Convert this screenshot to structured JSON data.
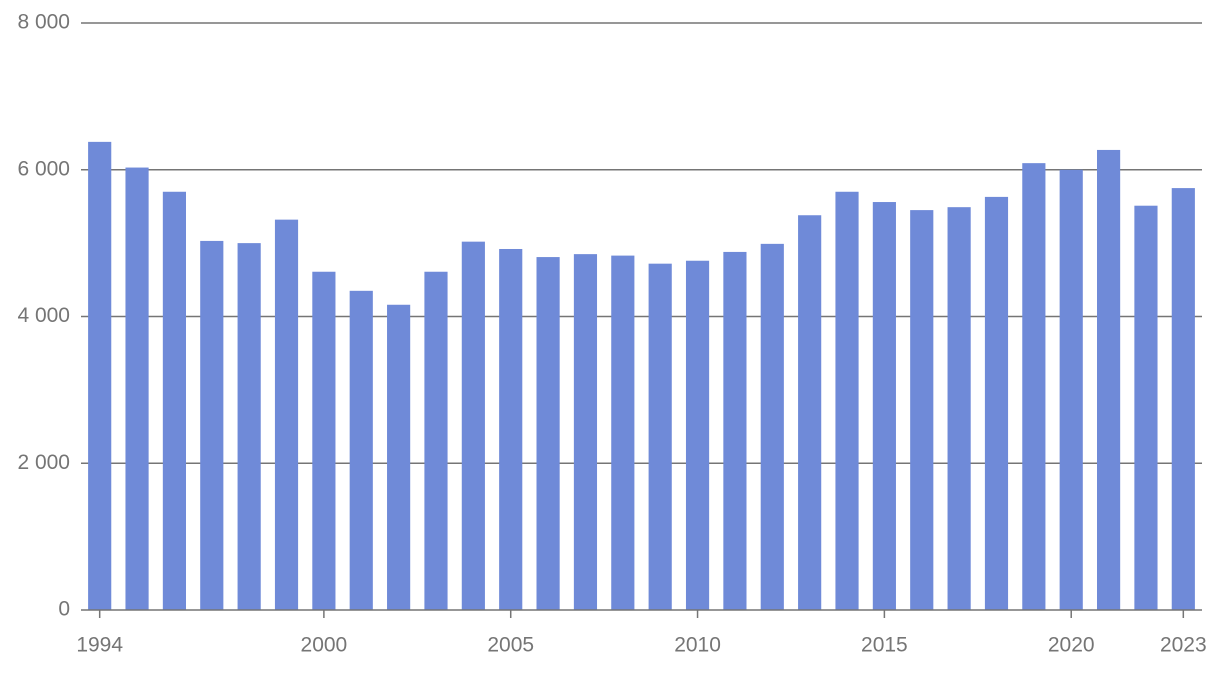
{
  "chart_data": {
    "type": "bar",
    "x": [
      1994,
      1995,
      1996,
      1997,
      1998,
      1999,
      2000,
      2001,
      2002,
      2003,
      2004,
      2005,
      2006,
      2007,
      2008,
      2009,
      2010,
      2011,
      2012,
      2013,
      2014,
      2015,
      2016,
      2017,
      2018,
      2019,
      2020,
      2021,
      2022,
      2023
    ],
    "values": [
      6380,
      6030,
      5700,
      5030,
      5000,
      5320,
      4610,
      4350,
      4160,
      4610,
      5020,
      4920,
      4810,
      4850,
      4830,
      4720,
      4760,
      4880,
      4990,
      5380,
      5700,
      5560,
      5450,
      5490,
      5630,
      6090,
      6000,
      6270,
      5510,
      5750
    ],
    "color": "#6f8ad8",
    "xlim": [
      1993.5,
      2023.5
    ],
    "xticks": [
      1994,
      2000,
      2005,
      2010,
      2015,
      2020,
      2023
    ],
    "ylim": [
      0,
      8000
    ],
    "yticks": [
      0,
      {
        "value": 2000,
        "label": "2 000"
      },
      {
        "value": 4000,
        "label": "4 000"
      },
      {
        "value": 6000,
        "label": "6 000"
      },
      {
        "value": 8000,
        "label": "8 000"
      }
    ],
    "grid": true
  }
}
